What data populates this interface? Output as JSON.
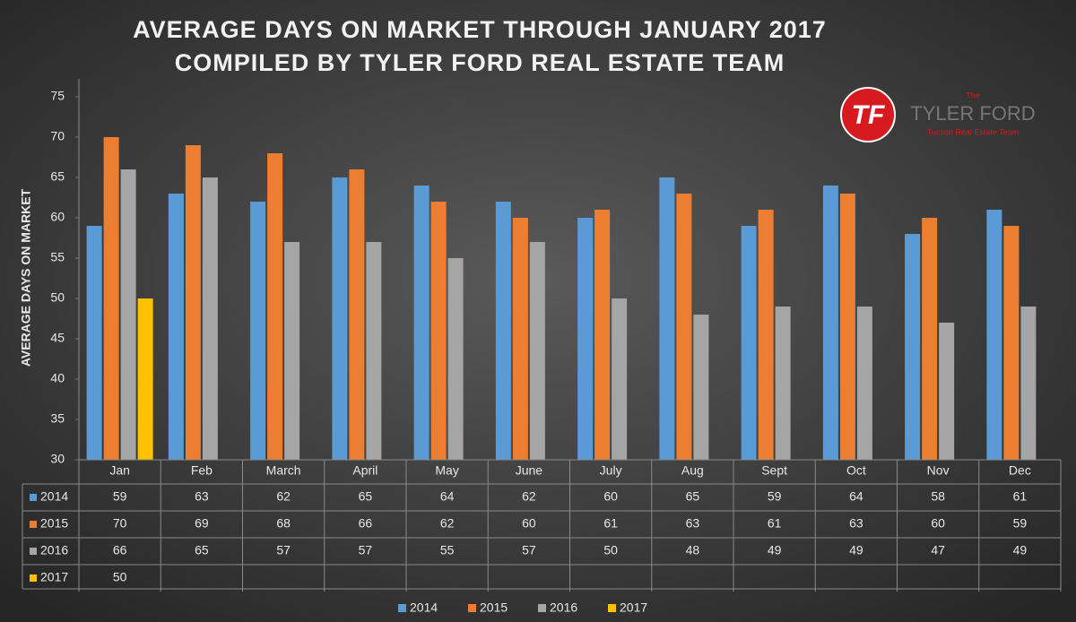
{
  "chart_data": {
    "type": "bar",
    "title": "AVERAGE DAYS ON MARKET THROUGH JANUARY 2017",
    "subtitle": "COMPILED BY TYLER FORD REAL ESTATE TEAM",
    "y_label": "AVERAGE DAYS ON MARKET",
    "categories": [
      "Jan",
      "Feb",
      "March",
      "April",
      "May",
      "June",
      "July",
      "Aug",
      "Sept",
      "Oct",
      "Nov",
      "Dec"
    ],
    "series": [
      {
        "name": "2014",
        "color": "#5b9bd5",
        "values": [
          59,
          63,
          62,
          65,
          64,
          62,
          60,
          65,
          59,
          64,
          58,
          61
        ]
      },
      {
        "name": "2015",
        "color": "#ed7d31",
        "values": [
          70,
          69,
          68,
          66,
          62,
          60,
          61,
          63,
          61,
          63,
          60,
          59
        ]
      },
      {
        "name": "2016",
        "color": "#a5a5a5",
        "values": [
          66,
          65,
          57,
          57,
          55,
          57,
          50,
          48,
          49,
          49,
          47,
          49
        ]
      },
      {
        "name": "2017",
        "color": "#ffc000",
        "values": [
          50,
          null,
          null,
          null,
          null,
          null,
          null,
          null,
          null,
          null,
          null,
          null
        ]
      }
    ],
    "ylim": [
      30,
      75
    ],
    "yticks": [
      30,
      35,
      40,
      45,
      50,
      55,
      60,
      65,
      70,
      75
    ],
    "grid": false,
    "data_table": true
  },
  "logo": {
    "mark": "TF",
    "pre": "The",
    "name": "TYLER FORD",
    "tagline": "Tucson Real Estate Team"
  }
}
